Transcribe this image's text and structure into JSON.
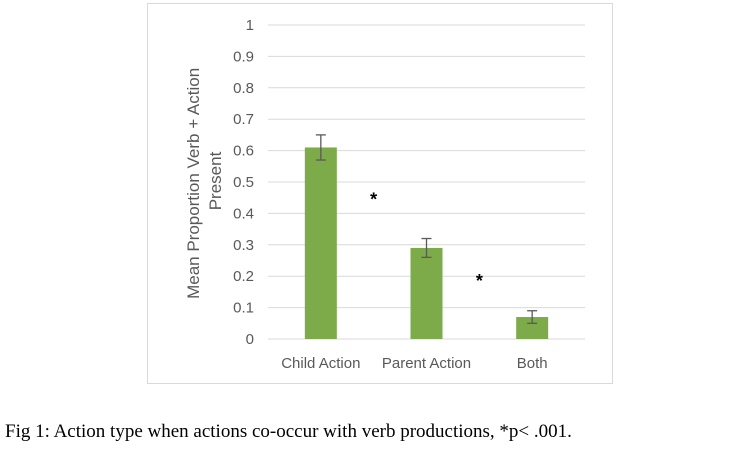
{
  "chart_data": {
    "type": "bar",
    "categories": [
      "Child Action",
      "Parent Action",
      "Both"
    ],
    "values": [
      0.61,
      0.29,
      0.07
    ],
    "error_bars": [
      0.04,
      0.03,
      0.02
    ],
    "ylabel_lines": [
      "Mean Proportion Verb + Action",
      "Present"
    ],
    "ylim": [
      0,
      1
    ],
    "yticks": [
      "0",
      "0.1",
      "0.2",
      "0.3",
      "0.4",
      "0.5",
      "0.6",
      "0.7",
      "0.8",
      "0.9",
      "1"
    ],
    "grid": true,
    "bar_color": "#7eab4a",
    "significance_marks": [
      {
        "between": [
          "Child Action",
          "Parent Action"
        ],
        "label": "*",
        "y": 0.47
      },
      {
        "between": [
          "Parent Action",
          "Both"
        ],
        "label": "*",
        "y": 0.21
      }
    ]
  },
  "caption": "Fig 1: Action type when actions co-occur with verb productions, *p< .001."
}
